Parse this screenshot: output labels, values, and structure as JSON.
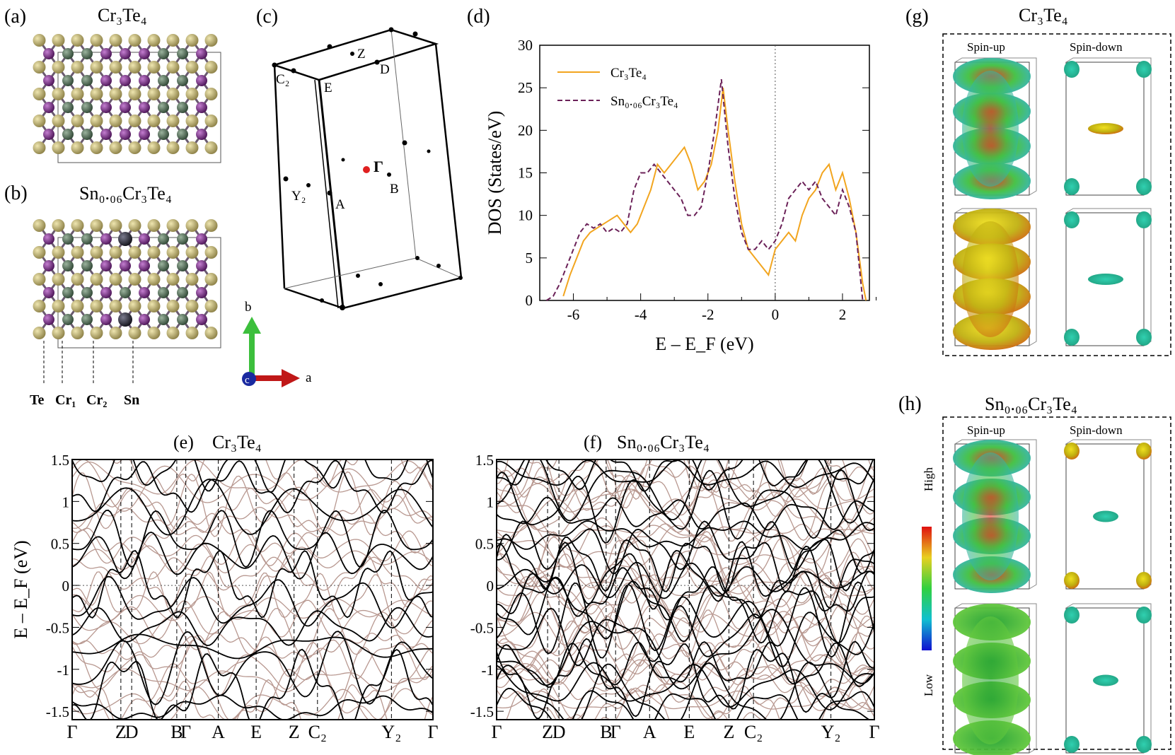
{
  "panels": {
    "a": {
      "label": "(a)",
      "title": "Cr₃Te₄"
    },
    "b": {
      "label": "(b)",
      "title": "Sn₀.₀₆Cr₃Te₄"
    },
    "c": {
      "label": "(c)"
    },
    "d": {
      "label": "(d)"
    },
    "e": {
      "label": "(e)",
      "title": "Cr₃Te₄"
    },
    "f": {
      "label": "(f)",
      "title": "Sn₀.₀₆Cr₃Te₄"
    },
    "g": {
      "label": "(g)",
      "title": "Cr₃Te₄",
      "col1": "Spin-up",
      "col2": "Spin-down"
    },
    "h": {
      "label": "(h)",
      "title": "Sn₀.₀₆Cr₃Te₄",
      "col1": "Spin-up",
      "col2": "Spin-down"
    }
  },
  "atom_labels": [
    "Te",
    "Cr₁",
    "Cr₂",
    "Sn"
  ],
  "axes_labels": {
    "b": "b",
    "a": "a",
    "c": "c"
  },
  "bz_points": [
    "Z",
    "C₂",
    "E",
    "D",
    "Γ",
    "B",
    "Y₂",
    "A"
  ],
  "colorbar": {
    "high": "High",
    "low": "Low"
  },
  "atom_colors": {
    "Te": "#b5a96a",
    "Cr1": "#7a2d84",
    "Cr2": "#4f6b54",
    "Sn": "#2a2a36"
  },
  "chart_data": [
    {
      "type": "line",
      "panel": "d",
      "xlabel": "E – E_F (eV)",
      "ylabel": "DOS (States/eV)",
      "xlim": [
        -7,
        2.8
      ],
      "ylim": [
        0,
        30
      ],
      "xticks": [
        "-6",
        "-4",
        "-2",
        "0",
        "2"
      ],
      "yticks": [
        "0",
        "5",
        "10",
        "15",
        "20",
        "25",
        "30"
      ],
      "series": [
        {
          "name": "Cr₃Te₄",
          "color": "#f2a51f",
          "style": "solid",
          "x": [
            -6.3,
            -6.1,
            -5.9,
            -5.7,
            -5.5,
            -5.3,
            -5.1,
            -4.9,
            -4.7,
            -4.5,
            -4.3,
            -4.1,
            -3.9,
            -3.7,
            -3.5,
            -3.3,
            -3.1,
            -2.9,
            -2.7,
            -2.5,
            -2.3,
            -2.1,
            -1.9,
            -1.7,
            -1.55,
            -1.4,
            -1.2,
            -1.0,
            -0.8,
            -0.6,
            -0.4,
            -0.2,
            0.0,
            0.2,
            0.4,
            0.6,
            0.8,
            1.0,
            1.2,
            1.4,
            1.6,
            1.8,
            2.0,
            2.2,
            2.4,
            2.6,
            2.7
          ],
          "y": [
            0.5,
            3,
            5,
            7,
            8,
            8.5,
            9,
            9.5,
            10,
            9,
            8,
            9,
            11,
            13,
            16,
            15,
            16,
            17,
            18,
            16,
            13,
            14,
            16,
            20,
            25,
            20,
            14,
            9,
            6,
            5,
            4,
            3,
            6,
            7,
            8,
            7,
            10,
            12,
            13,
            15,
            16,
            13,
            15,
            12,
            8,
            2,
            0
          ]
        },
        {
          "name": "Sn₀.₀₆Cr₃Te₄",
          "color": "#6b2158",
          "style": "dashed",
          "x": [
            -6.8,
            -6.6,
            -6.4,
            -6.2,
            -6.0,
            -5.8,
            -5.6,
            -5.4,
            -5.2,
            -5.0,
            -4.8,
            -4.6,
            -4.4,
            -4.2,
            -4.0,
            -3.8,
            -3.6,
            -3.4,
            -3.2,
            -3.0,
            -2.8,
            -2.6,
            -2.4,
            -2.2,
            -2.0,
            -1.8,
            -1.6,
            -1.5,
            -1.4,
            -1.2,
            -1.0,
            -0.8,
            -0.6,
            -0.4,
            -0.2,
            0.0,
            0.2,
            0.4,
            0.6,
            0.8,
            1.0,
            1.2,
            1.4,
            1.6,
            1.8,
            2.0,
            2.2,
            2.4,
            2.6
          ],
          "y": [
            0,
            0.5,
            2,
            4,
            6,
            8,
            9,
            8.5,
            9,
            8,
            8.5,
            8,
            9,
            13,
            15,
            15,
            16,
            15,
            14,
            13,
            12,
            10,
            10,
            11,
            15,
            20,
            26,
            22,
            18,
            12,
            8,
            6,
            6,
            7,
            6,
            7,
            9,
            12,
            13,
            14,
            13,
            14,
            12,
            11,
            10,
            13,
            11,
            8,
            0
          ]
        }
      ]
    },
    {
      "type": "line",
      "panel": "e",
      "title": "Cr₃Te₄",
      "ylabel": "E – E_F (eV)",
      "ylim": [
        -1.6,
        1.5
      ],
      "yticks": [
        "1.5",
        "1",
        "0.5",
        "0",
        "-0.5",
        "-1",
        "-1.5"
      ],
      "k_points": [
        "Γ",
        "Z",
        "D",
        "B",
        "Γ",
        "A",
        "E",
        "Z",
        "C₂",
        "Y₂",
        "Γ"
      ],
      "series_colors": {
        "spin_up": "#000000",
        "spin_down": "#b89890"
      }
    },
    {
      "type": "line",
      "panel": "f",
      "title": "Sn₀.₀₆Cr₃Te₄",
      "ylim": [
        -1.6,
        1.5
      ],
      "yticks": [
        "1.5",
        "1",
        "0.5",
        "0",
        "-0.5",
        "-1",
        "-1.5"
      ],
      "k_points": [
        "Γ",
        "Z",
        "D",
        "B",
        "Γ",
        "A",
        "E",
        "Z",
        "C₂",
        "Y₂",
        "Γ"
      ],
      "series_colors": {
        "spin_up": "#000000",
        "spin_down": "#b89890"
      }
    }
  ]
}
